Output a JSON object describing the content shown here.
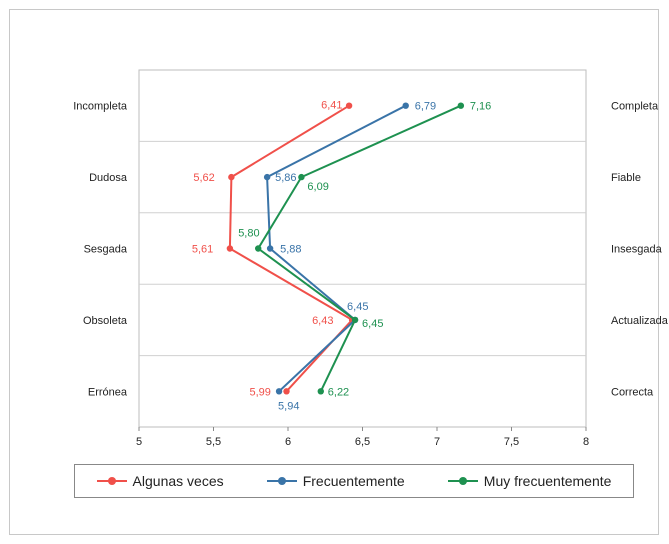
{
  "chart_data": {
    "type": "line",
    "orientation": "horizontal-profile",
    "xlim": [
      5,
      8
    ],
    "x_ticks": [
      "5",
      "5,5",
      "6",
      "6,5",
      "7",
      "7,5",
      "8"
    ],
    "left_labels": [
      "Incompleta",
      "Dudosa",
      "Sesgada",
      "Obsoleta",
      "Errónea"
    ],
    "right_labels": [
      "Completa",
      "Fiable",
      "Insesgada",
      "Actualizada",
      "Correcta"
    ],
    "grid": true,
    "legend_position": "bottom",
    "series": [
      {
        "name": "Algunas veces",
        "color": "#f0504a",
        "values": [
          6.41,
          5.62,
          5.61,
          6.43,
          5.99
        ],
        "labels": [
          "6,41",
          "5,62",
          "5,61",
          "6,43",
          "5,99"
        ]
      },
      {
        "name": "Frecuentemente",
        "color": "#3a74a8",
        "values": [
          6.79,
          5.86,
          5.88,
          6.45,
          5.94
        ],
        "labels": [
          "6,79",
          "5,86",
          "5,88",
          "6,45",
          "5,94"
        ]
      },
      {
        "name": "Muy frecuentemente",
        "color": "#1e9150",
        "values": [
          7.16,
          6.09,
          5.8,
          6.45,
          6.22
        ],
        "labels": [
          "7,16",
          "6,09",
          "5,80",
          "6,45",
          "6,22"
        ]
      }
    ]
  }
}
